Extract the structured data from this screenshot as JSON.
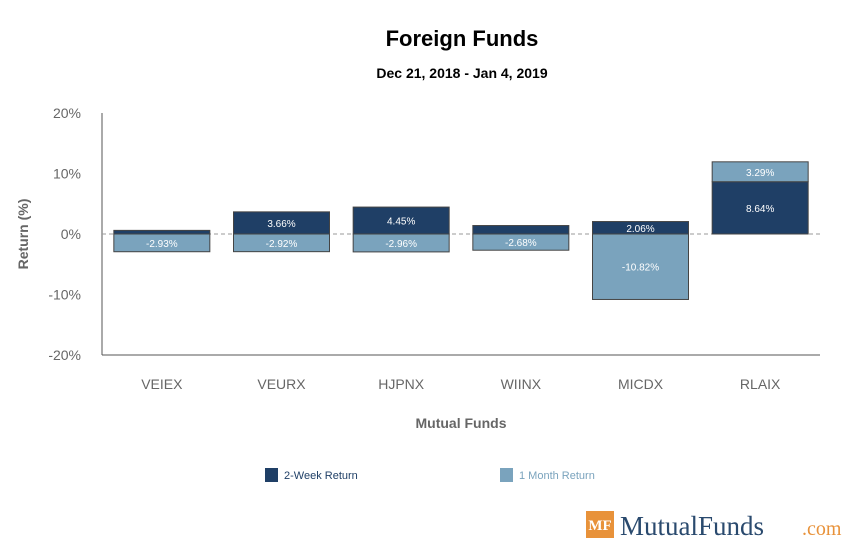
{
  "chart_data": {
    "type": "bar",
    "title": "Foreign Funds",
    "subtitle": "Dec 21, 2018 - Jan 4, 2019",
    "xlabel": "Mutual Funds",
    "ylabel": "Return (%)",
    "ylim": [
      -20,
      20
    ],
    "yticks": [
      20,
      10,
      0,
      -10,
      -20
    ],
    "ytick_labels": [
      "20%",
      "10%",
      "0%",
      "-10%",
      "-20%"
    ],
    "categories": [
      "VEIEX",
      "VEURX",
      "HJPNX",
      "WIINX",
      "MICDX",
      "RLAIX"
    ],
    "series": [
      {
        "name": "2-Week Return",
        "color": "#1f3f66",
        "values": [
          0.6,
          3.66,
          4.45,
          1.4,
          2.06,
          8.64
        ],
        "labels": [
          "",
          "3.66%",
          "4.45%",
          "",
          "2.06%",
          "8.64%"
        ]
      },
      {
        "name": "1 Month Return",
        "color": "#7aa3bd",
        "values": [
          -2.93,
          -2.92,
          -2.96,
          -2.68,
          -10.82,
          3.29
        ],
        "labels": [
          "-2.93%",
          "-2.92%",
          "-2.96%",
          "-2.68%",
          "-10.82%",
          "3.29%"
        ]
      }
    ],
    "grid": false,
    "legend_position": "bottom"
  },
  "logo": {
    "mark": "MF",
    "name": "MutualFunds",
    "suffix": ".com"
  }
}
